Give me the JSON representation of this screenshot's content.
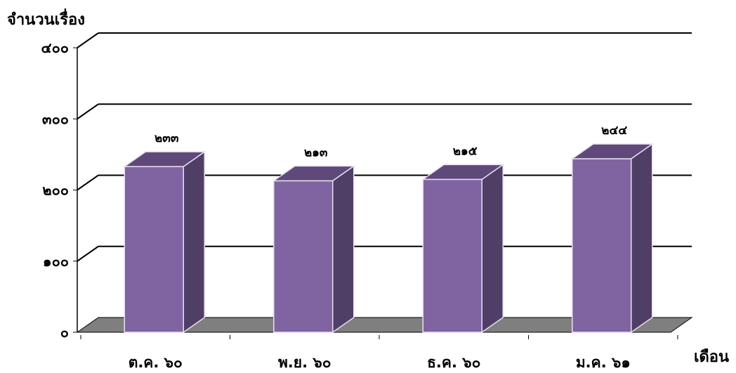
{
  "chart_data": {
    "type": "bar",
    "title": "",
    "ylabel": "จำนวนเรื่อง",
    "xlabel": "เดือน",
    "categories": [
      "ต.ค. ๖๐",
      "พ.ย. ๖๐",
      "ธ.ค. ๖๐",
      "ม.ค. ๖๑"
    ],
    "values": [
      233,
      213,
      215,
      244
    ],
    "data_labels": [
      "๒๓๓",
      "๒๑๓",
      "๒๑๕",
      "๒๔๔"
    ],
    "y_ticks": [
      0,
      100,
      200,
      300,
      400
    ],
    "y_tick_labels": [
      "๐",
      "๑๐๐",
      "๒๐๐",
      "๓๐๐",
      "๔๐๐"
    ],
    "ylim": [
      0,
      400
    ],
    "grid": true,
    "legend": "none",
    "colors": {
      "bar_front": "#8064a2",
      "bar_top": "#5f497a",
      "bar_side": "#4f3f66",
      "bar_edge": "#e8dff2",
      "floor": "#7f7f7f",
      "gridline": "#000000"
    }
  }
}
